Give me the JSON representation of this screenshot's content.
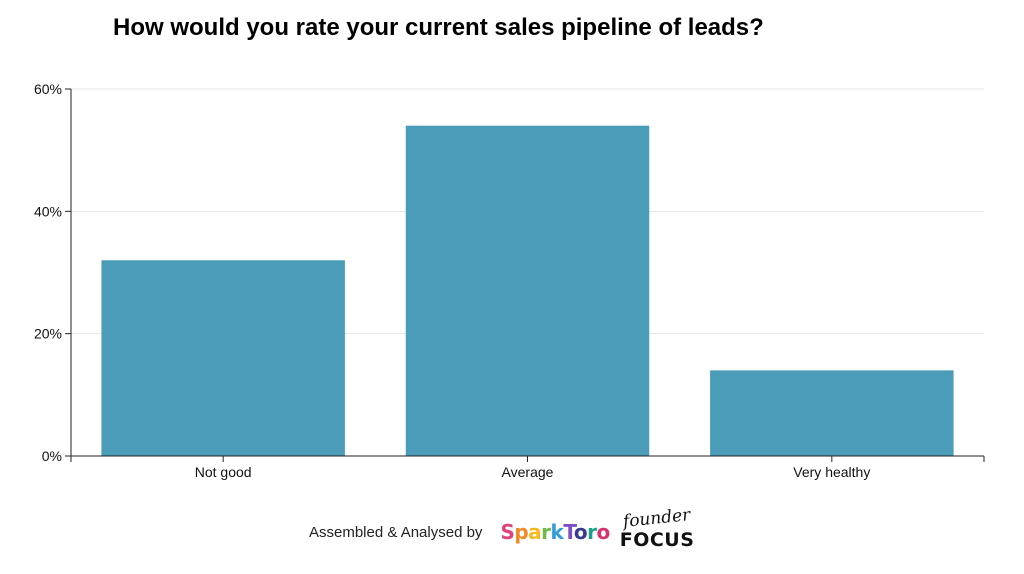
{
  "chart_data": {
    "type": "bar",
    "title": "How would you rate your current sales pipeline of leads?",
    "categories": [
      "Not good",
      "Average",
      "Very healthy"
    ],
    "values": [
      32,
      54,
      14
    ],
    "yticks": [
      "0%",
      "20%",
      "40%",
      "60%"
    ],
    "ytick_values": [
      0,
      20,
      40,
      60
    ],
    "ylim": [
      0,
      60
    ],
    "xlabel": "",
    "ylabel": "",
    "grid": true,
    "bar_color": "#4a9cb9"
  },
  "footer": {
    "credit_text": "Assembled & Analysed by",
    "logo_sparktoro": "SparkToro",
    "logo_founder_line1": "founder",
    "logo_founder_line2": "FOCUS",
    "sparktoro_colors": [
      "#e2427c",
      "#f08a24",
      "#f5b921",
      "#6fb94a",
      "#2d9cdb",
      "#7b4fc4",
      "#3a3a8c",
      "#1f9f8f",
      "#d6336c"
    ]
  }
}
